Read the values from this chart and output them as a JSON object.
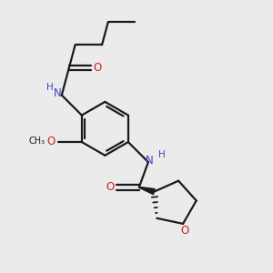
{
  "bg_color": "#ebebeb",
  "bond_color": "#1a1a1a",
  "N_color": "#4040cc",
  "O_color": "#cc2020",
  "lw": 1.6,
  "figsize": [
    3.0,
    3.0
  ],
  "dpi": 100,
  "xlim": [
    -1.5,
    6.5
  ],
  "ylim": [
    -4.5,
    4.0
  ]
}
